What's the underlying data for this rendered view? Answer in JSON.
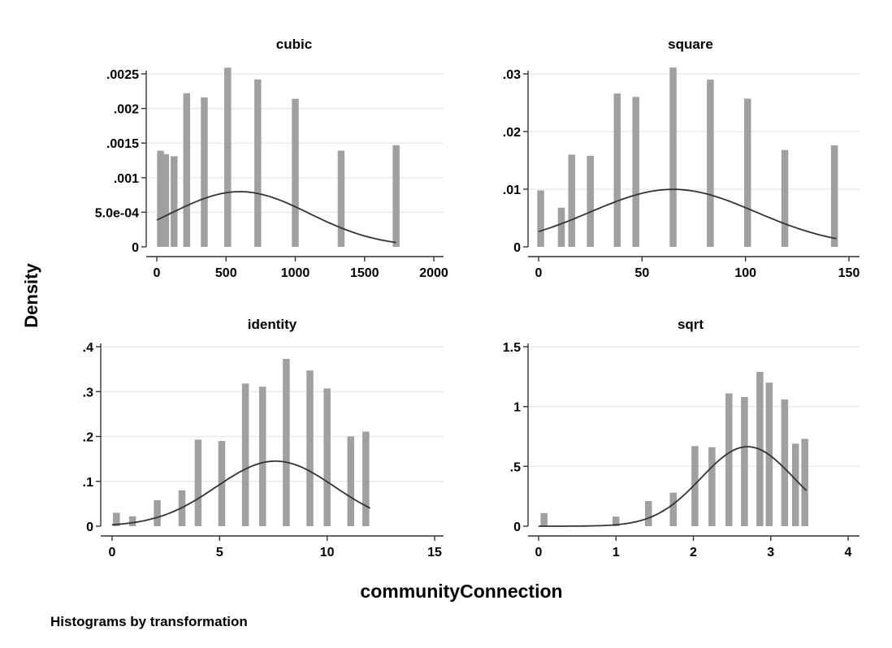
{
  "figure": {
    "ylabel": "Density",
    "xlabel": "communityConnection",
    "note": "Histograms by transformation",
    "bar_color": "#a0a0a0",
    "curve_color": "#333333",
    "grid_color": "#e6e6e6",
    "axis_color": "#333333"
  },
  "chart_data": [
    {
      "type": "bar",
      "title": "cubic",
      "xlim": [
        0,
        2000
      ],
      "ylim": [
        0,
        0.0025
      ],
      "xticks": [
        0,
        500,
        1000,
        1500,
        2000
      ],
      "xtick_labels": [
        "0",
        "500",
        "1000",
        "1500",
        "2000"
      ],
      "yticks": [
        0,
        0.0005,
        0.001,
        0.0015,
        0.002,
        0.0025
      ],
      "ytick_labels": [
        "0",
        "5.0e-04",
        ".001",
        ".0015",
        ".002",
        ".0025"
      ],
      "grid": true,
      "bars": [
        {
          "x": 27,
          "y": 0.00139
        },
        {
          "x": 64,
          "y": 0.00134
        },
        {
          "x": 125,
          "y": 0.00131
        },
        {
          "x": 216,
          "y": 0.00222
        },
        {
          "x": 343,
          "y": 0.00216
        },
        {
          "x": 512,
          "y": 0.00259
        },
        {
          "x": 729,
          "y": 0.00242
        },
        {
          "x": 1000,
          "y": 0.00214
        },
        {
          "x": 1331,
          "y": 0.00139
        },
        {
          "x": 1728,
          "y": 0.00147
        }
      ],
      "normal_curve": {
        "mean": 600,
        "sd": 500,
        "x_range": [
          0,
          1728
        ]
      }
    },
    {
      "type": "bar",
      "title": "square",
      "xlim": [
        0,
        150
      ],
      "ylim": [
        0,
        0.03
      ],
      "xticks": [
        0,
        50,
        100,
        150
      ],
      "xtick_labels": [
        "0",
        "50",
        "100",
        "150"
      ],
      "yticks": [
        0,
        0.01,
        0.02,
        0.03
      ],
      "ytick_labels": [
        "0",
        ".01",
        ".02",
        ".03"
      ],
      "grid": true,
      "bars": [
        {
          "x": 1,
          "y": 0.0098
        },
        {
          "x": 11,
          "y": 0.0068
        },
        {
          "x": 16,
          "y": 0.016
        },
        {
          "x": 25,
          "y": 0.0158
        },
        {
          "x": 38,
          "y": 0.0266
        },
        {
          "x": 47,
          "y": 0.026
        },
        {
          "x": 65,
          "y": 0.0311
        },
        {
          "x": 83,
          "y": 0.029
        },
        {
          "x": 101,
          "y": 0.0257
        },
        {
          "x": 119,
          "y": 0.0168
        },
        {
          "x": 143,
          "y": 0.0176
        }
      ],
      "normal_curve": {
        "mean": 65,
        "sd": 40,
        "x_range": [
          0,
          144
        ]
      }
    },
    {
      "type": "bar",
      "title": "identity",
      "xlim": [
        0,
        15
      ],
      "ylim": [
        0,
        0.4
      ],
      "xticks": [
        0,
        5,
        10,
        15
      ],
      "xtick_labels": [
        "0",
        "5",
        "10",
        "15"
      ],
      "yticks": [
        0,
        0.1,
        0.2,
        0.3,
        0.4
      ],
      "ytick_labels": [
        "0",
        ".1",
        ".2",
        ".3",
        ".4"
      ],
      "grid": true,
      "bars": [
        {
          "x": 0.2,
          "y": 0.03
        },
        {
          "x": 0.95,
          "y": 0.022
        },
        {
          "x": 2.1,
          "y": 0.058
        },
        {
          "x": 3.25,
          "y": 0.08
        },
        {
          "x": 4.0,
          "y": 0.193
        },
        {
          "x": 5.1,
          "y": 0.19
        },
        {
          "x": 6.2,
          "y": 0.318
        },
        {
          "x": 7.0,
          "y": 0.311
        },
        {
          "x": 8.1,
          "y": 0.373
        },
        {
          "x": 9.2,
          "y": 0.347
        },
        {
          "x": 10.0,
          "y": 0.307
        },
        {
          "x": 11.1,
          "y": 0.2
        },
        {
          "x": 11.8,
          "y": 0.211
        }
      ],
      "normal_curve": {
        "mean": 7.6,
        "sd": 2.75,
        "x_range": [
          0,
          12
        ]
      }
    },
    {
      "type": "bar",
      "title": "sqrt",
      "xlim": [
        0,
        4
      ],
      "ylim": [
        0,
        1.5
      ],
      "xticks": [
        0,
        1,
        2,
        3,
        4
      ],
      "xtick_labels": [
        "0",
        "1",
        "2",
        "3",
        "4"
      ],
      "yticks": [
        0,
        0.5,
        1,
        1.5
      ],
      "ytick_labels": [
        "0",
        ".5",
        "1",
        "1.5"
      ],
      "grid": true,
      "bars": [
        {
          "x": 0.07,
          "y": 0.11
        },
        {
          "x": 1.0,
          "y": 0.08
        },
        {
          "x": 1.42,
          "y": 0.21
        },
        {
          "x": 1.74,
          "y": 0.28
        },
        {
          "x": 2.02,
          "y": 0.67
        },
        {
          "x": 2.24,
          "y": 0.66
        },
        {
          "x": 2.46,
          "y": 1.11
        },
        {
          "x": 2.66,
          "y": 1.08
        },
        {
          "x": 2.86,
          "y": 1.29
        },
        {
          "x": 2.98,
          "y": 1.2
        },
        {
          "x": 3.18,
          "y": 1.06
        },
        {
          "x": 3.32,
          "y": 0.69
        },
        {
          "x": 3.44,
          "y": 0.73
        }
      ],
      "normal_curve": {
        "mean": 2.7,
        "sd": 0.6,
        "x_range": [
          0,
          3.46
        ]
      }
    }
  ]
}
